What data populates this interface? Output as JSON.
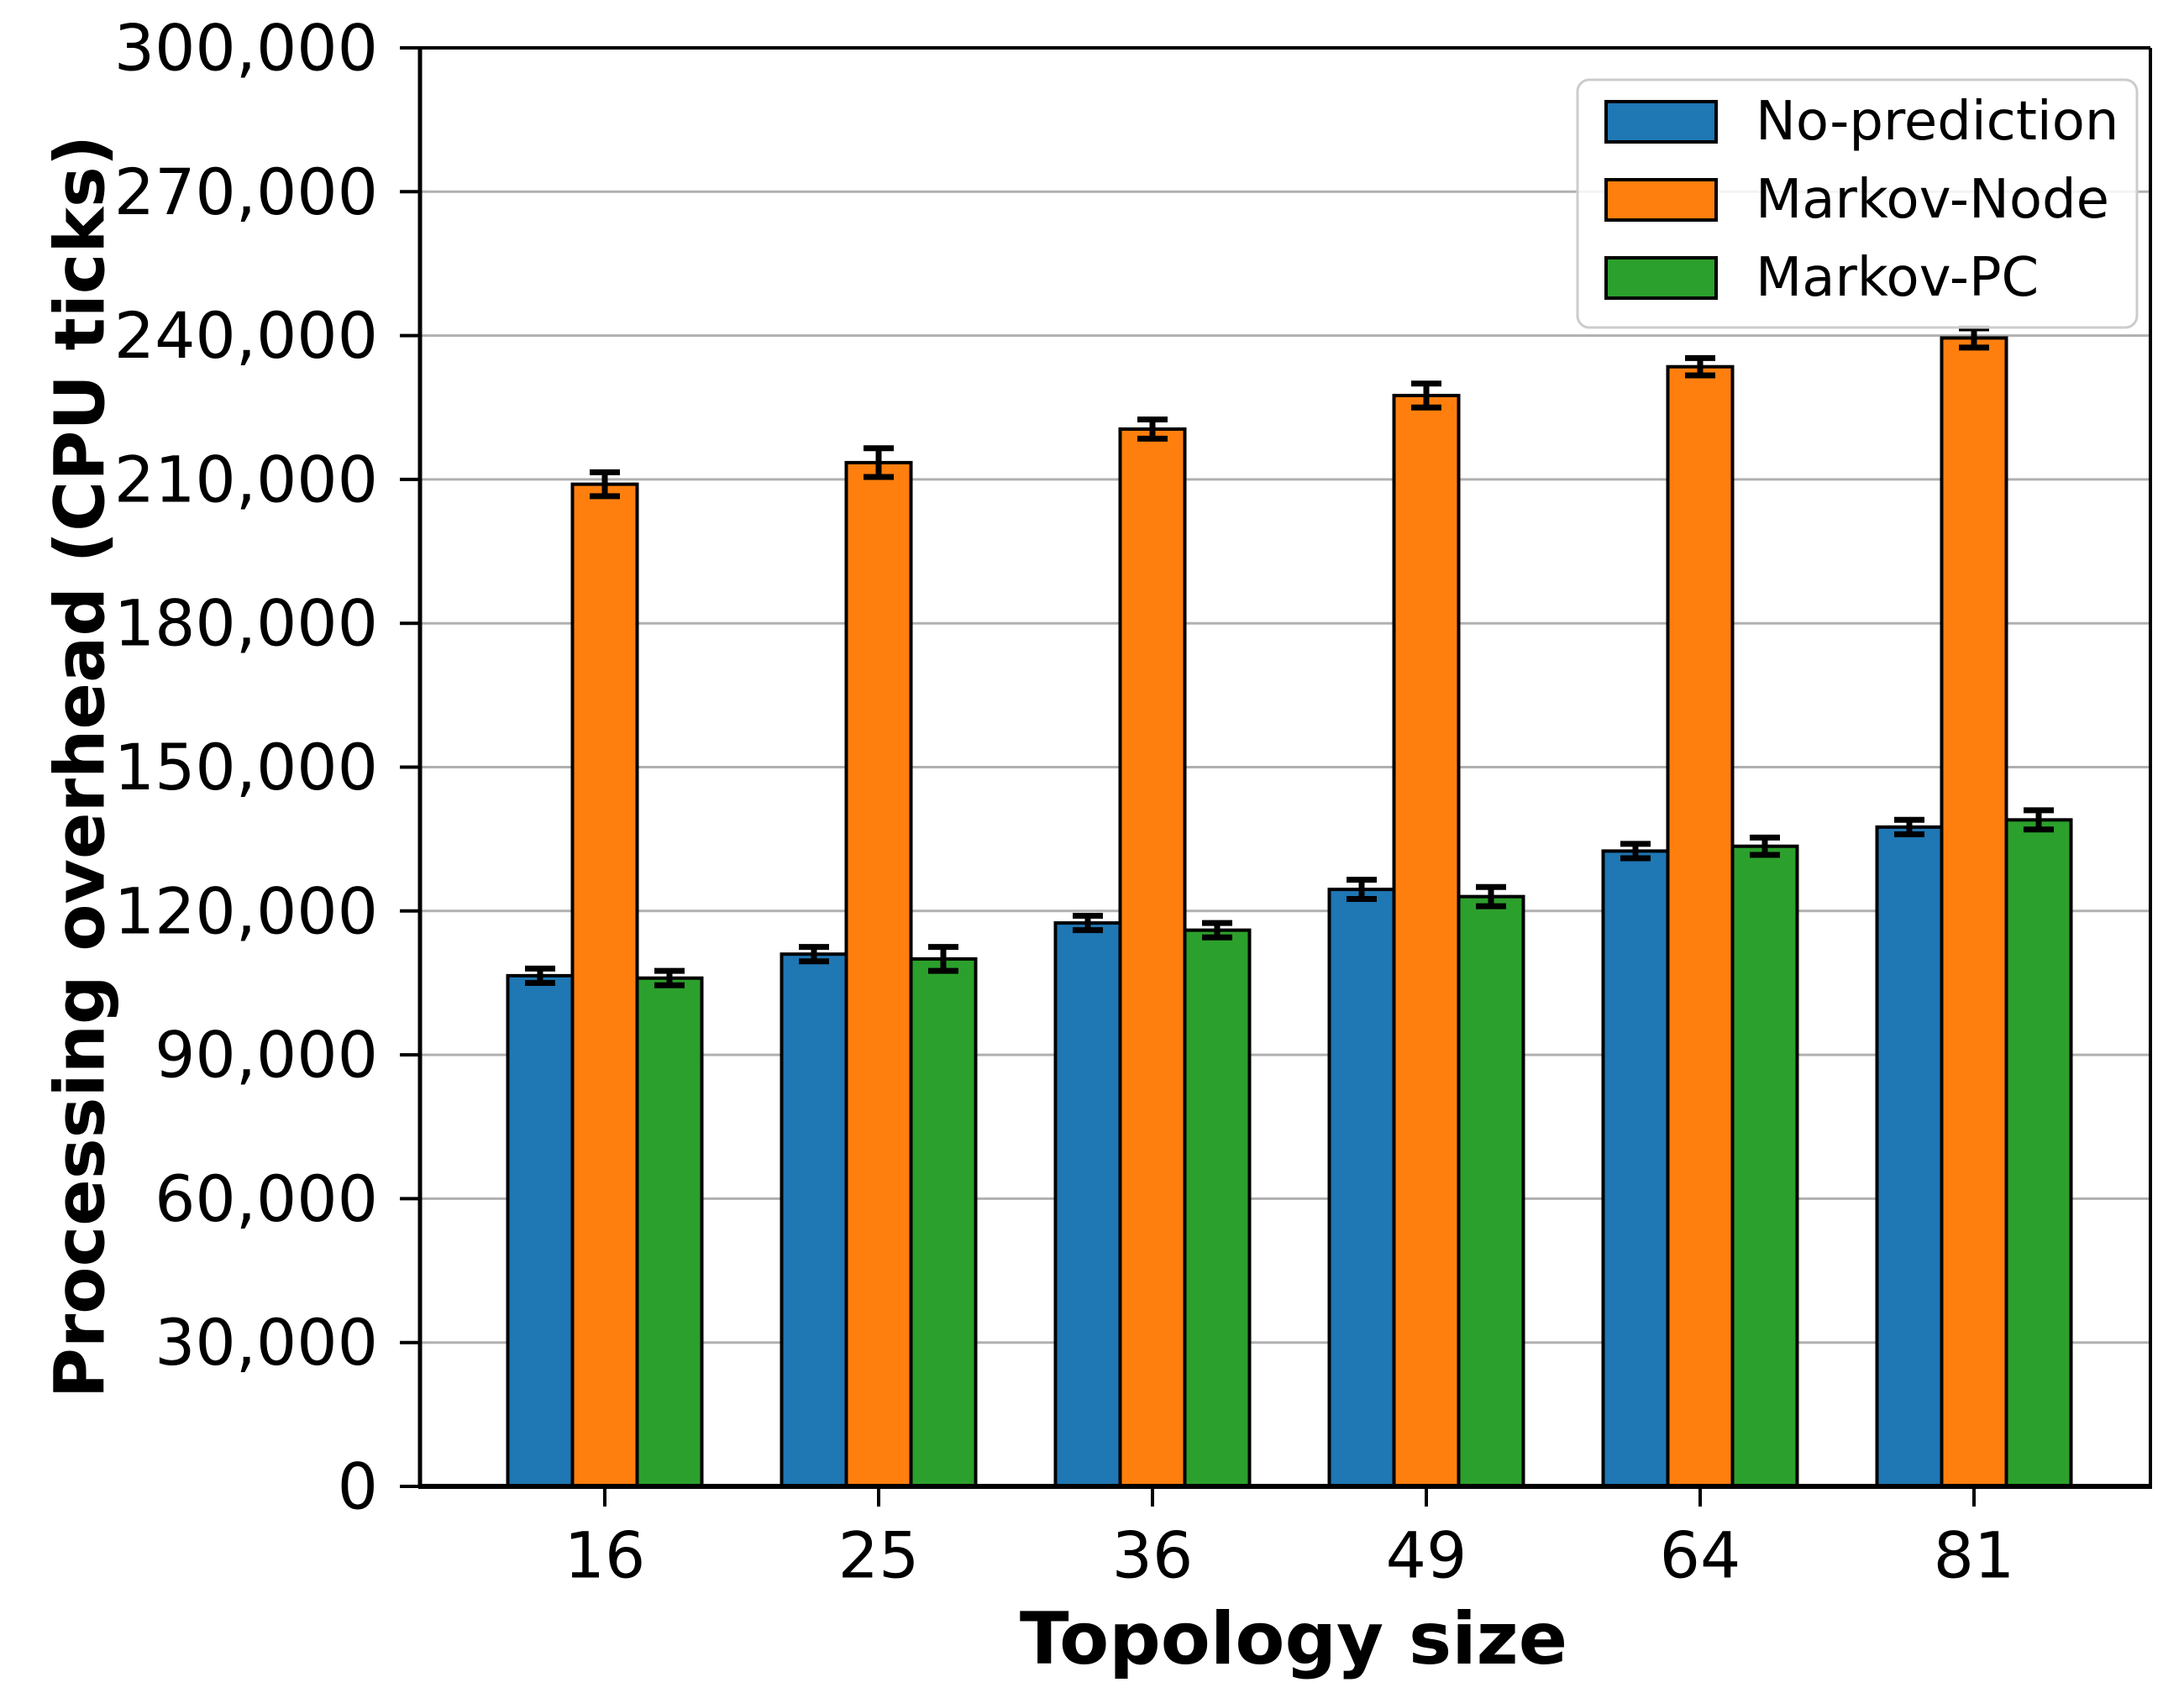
{
  "chart_data": {
    "type": "bar",
    "title": "",
    "xlabel": "Topology size",
    "ylabel": "Processing overhead (CPU ticks)",
    "categories": [
      "16",
      "25",
      "36",
      "49",
      "64",
      "81"
    ],
    "series": [
      {
        "name": "No-prediction",
        "color": "#1f77b4",
        "values": [
          106500,
          111000,
          117500,
          124500,
          132500,
          137500
        ],
        "errors": [
          1500,
          1500,
          1500,
          2000,
          1500,
          1500
        ]
      },
      {
        "name": "Markov-Node",
        "color": "#ff7f0e",
        "values": [
          209000,
          213500,
          220500,
          227500,
          233500,
          239500
        ],
        "errors": [
          2500,
          3000,
          2000,
          2500,
          1800,
          2000
        ]
      },
      {
        "name": "Markov-PC",
        "color": "#2ca02c",
        "values": [
          106000,
          110000,
          116000,
          123000,
          133500,
          139000
        ],
        "errors": [
          1500,
          2500,
          1500,
          2000,
          1800,
          2000
        ]
      }
    ],
    "ylim": [
      0,
      300000
    ],
    "ytick_step": 30000,
    "ytick_labels": [
      "0",
      "30,000",
      "60,000",
      "90,000",
      "120,000",
      "150,000",
      "180,000",
      "210,000",
      "240,000",
      "270,000",
      "300,000"
    ],
    "grid": "horizontal",
    "grid_color": "#b0b0b0",
    "background_color": "#ffffff",
    "spine_color": "#000000",
    "bar_edge_color": "#000000",
    "error_bar_color": "#000000",
    "legend": {
      "position": "upper right",
      "labels": [
        "No-prediction",
        "Markov-Node",
        "Markov-PC"
      ],
      "border_color": "#cccccc",
      "fill_color": "rgba(255,255,255,0.85)"
    }
  }
}
